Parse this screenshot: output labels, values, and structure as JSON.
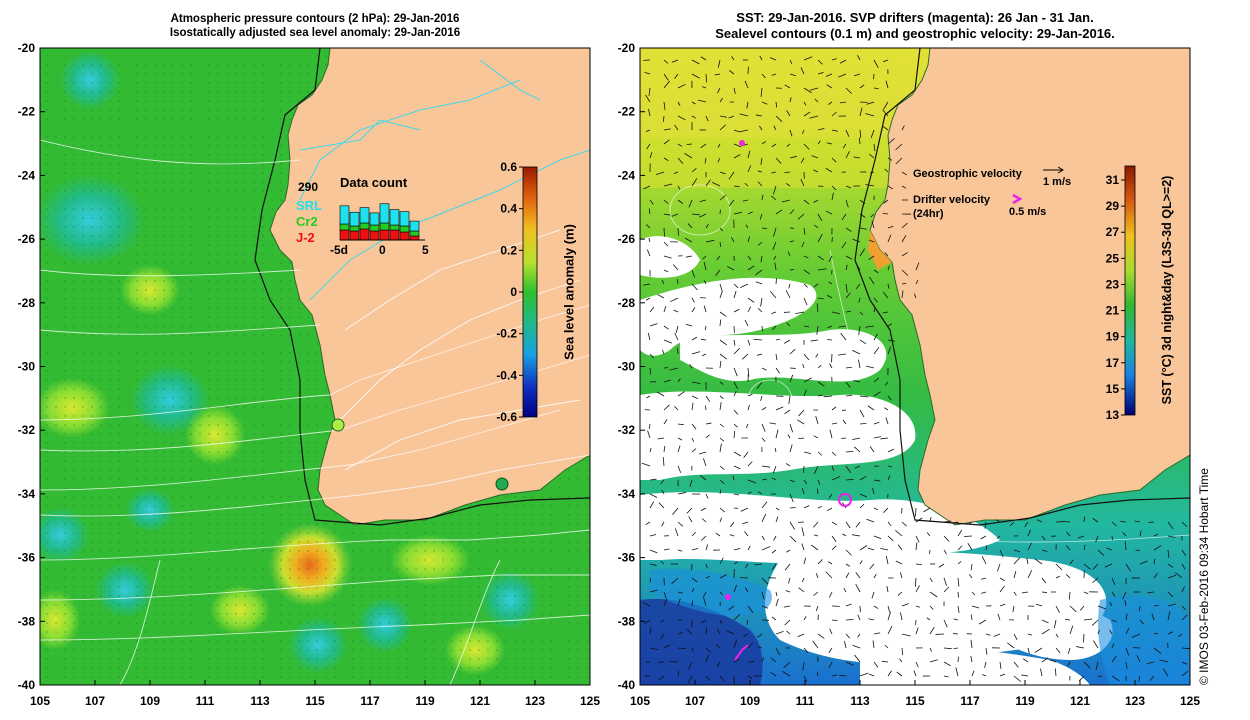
{
  "left_panel": {
    "title_line1": "Atmospheric pressure contours (2 hPa): 29-Jan-2016",
    "title_line2": "Isostatically adjusted sea level anomaly: 29-Jan-2016",
    "colorbar": {
      "label": "Sea level anomaly (m)",
      "ticks": [
        "0.6",
        "0.4",
        "0.2",
        "0",
        "-0.2",
        "-0.4",
        "-0.6"
      ]
    },
    "data_count": {
      "title": "Data count",
      "value": "290",
      "legend": [
        {
          "label": "SRL",
          "color": "#1ee0ee"
        },
        {
          "label": "Cr2",
          "color": "#22cc22"
        },
        {
          "label": "J-2",
          "color": "#ee1111"
        }
      ],
      "axis_labels": [
        "-5d",
        "0",
        "5"
      ]
    }
  },
  "right_panel": {
    "title_line1": "SST: 29-Jan-2016. SVP drifters (magenta): 26 Jan - 31 Jan.",
    "title_line2": "Sealevel contours (0.1 m) and geostrophic velocity: 29-Jan-2016.",
    "legend": {
      "geostrophic_label": "Geostrophic velocity",
      "geostrophic_scale": "1 m/s",
      "drifter_label": "Drifter velocity",
      "drifter_sub": "(24hr)",
      "drifter_scale": "0.5 m/s"
    },
    "colorbar": {
      "label": "SST (°C) 3d night&day (L3S-3d QL>=2)",
      "ticks": [
        "31",
        "29",
        "27",
        "25",
        "23",
        "21",
        "19",
        "17",
        "15",
        "13"
      ]
    }
  },
  "axes": {
    "y_ticks": [
      "-20",
      "-22",
      "-24",
      "-26",
      "-28",
      "-30",
      "-32",
      "-34",
      "-36",
      "-38",
      "-40"
    ],
    "x_ticks": [
      "105",
      "107",
      "109",
      "111",
      "113",
      "115",
      "117",
      "119",
      "121",
      "123",
      "125"
    ]
  },
  "credit": "© IMOS 03-Feb-2016 09:34 Hobart Time",
  "colors": {
    "land": "#f9c69a",
    "ocean_green": "#3fbf3a",
    "sea_white": "#ffffff",
    "contour_cyan": "#40d8e8",
    "drifter_magenta": "#ee22ee"
  }
}
